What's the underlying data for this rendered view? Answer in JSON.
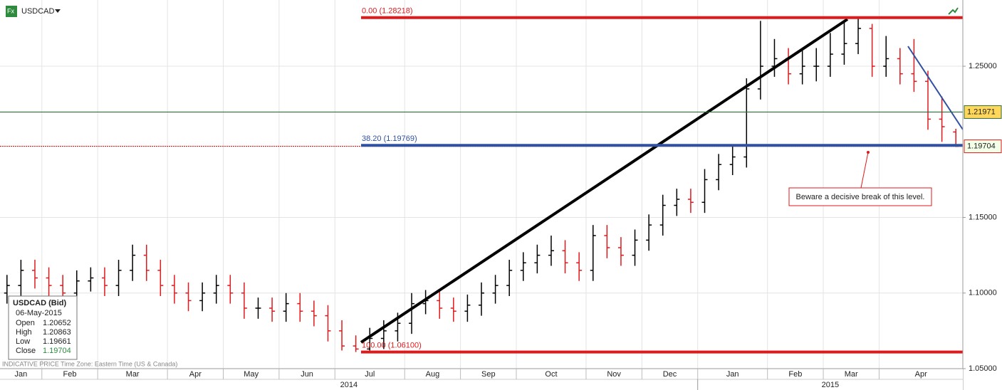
{
  "chart_data": {
    "type": "ohlc",
    "title": "USDCAD",
    "categories": [
      "Jan",
      null,
      null,
      "Feb",
      null,
      null,
      null,
      "Mar",
      null,
      null,
      null,
      null,
      "Apr",
      null,
      null,
      null,
      "May",
      null,
      null,
      null,
      "Jun",
      null,
      null,
      null,
      "Jul",
      null,
      null,
      null,
      null,
      "Aug",
      null,
      null,
      null,
      "Sep",
      null,
      null,
      null,
      "Oct",
      null,
      null,
      null,
      null,
      "Nov",
      null,
      null,
      null,
      "Dec",
      null,
      null,
      null,
      "Jan",
      null,
      null,
      null,
      null,
      "Feb",
      null,
      null,
      null,
      "Mar",
      null,
      null,
      null,
      "Apr",
      null,
      null,
      null,
      null,
      null
    ],
    "years": [
      "2014",
      null,
      null,
      null,
      null,
      null,
      null,
      null,
      null,
      null,
      null,
      null,
      null,
      null,
      null,
      null,
      null,
      null,
      null,
      null,
      null,
      null,
      null,
      null,
      null,
      null,
      null,
      null,
      null,
      null,
      null,
      null,
      null,
      null,
      null,
      null,
      null,
      null,
      null,
      null,
      null,
      null,
      null,
      null,
      null,
      null,
      null,
      null,
      null,
      null,
      "2015",
      null,
      null,
      null,
      null,
      null,
      null,
      null,
      null,
      null,
      null,
      null,
      null,
      null,
      null,
      null,
      null,
      null,
      null
    ],
    "open": [
      1.1,
      1.105,
      1.115,
      1.11,
      1.105,
      1.1,
      1.108,
      1.11,
      1.105,
      1.115,
      1.125,
      1.115,
      1.105,
      1.1,
      1.095,
      1.1,
      1.105,
      1.1,
      1.09,
      1.09,
      1.088,
      1.093,
      1.088,
      1.085,
      1.075,
      1.065,
      1.063,
      1.07,
      1.075,
      1.08,
      1.093,
      1.095,
      1.09,
      1.088,
      1.092,
      1.1,
      1.105,
      1.115,
      1.12,
      1.125,
      1.128,
      1.12,
      1.115,
      1.138,
      1.13,
      1.125,
      1.135,
      1.145,
      1.158,
      1.162,
      1.16,
      1.175,
      1.185,
      1.19,
      1.235,
      1.25,
      1.255,
      1.245,
      1.25,
      1.25,
      1.258,
      1.265,
      1.275,
      1.25,
      1.255,
      1.245,
      1.24,
      1.215,
      1.20652
    ],
    "high": [
      1.112,
      1.122,
      1.122,
      1.117,
      1.112,
      1.115,
      1.117,
      1.117,
      1.122,
      1.132,
      1.132,
      1.122,
      1.112,
      1.107,
      1.107,
      1.112,
      1.112,
      1.107,
      1.097,
      1.097,
      1.1,
      1.1,
      1.095,
      1.092,
      1.082,
      1.072,
      1.077,
      1.082,
      1.087,
      1.1,
      1.102,
      1.102,
      1.097,
      1.099,
      1.107,
      1.112,
      1.122,
      1.127,
      1.132,
      1.138,
      1.135,
      1.127,
      1.145,
      1.145,
      1.137,
      1.142,
      1.152,
      1.165,
      1.169,
      1.169,
      1.182,
      1.192,
      1.197,
      1.242,
      1.28,
      1.268,
      1.262,
      1.262,
      1.262,
      1.272,
      1.28,
      1.2822,
      1.278,
      1.27,
      1.262,
      1.268,
      1.247,
      1.23,
      1.20863
    ],
    "low": [
      1.093,
      1.098,
      1.103,
      1.098,
      1.093,
      1.093,
      1.101,
      1.098,
      1.098,
      1.108,
      1.108,
      1.098,
      1.093,
      1.088,
      1.088,
      1.093,
      1.093,
      1.083,
      1.083,
      1.081,
      1.081,
      1.081,
      1.078,
      1.068,
      1.062,
      1.061,
      1.062,
      1.063,
      1.068,
      1.073,
      1.086,
      1.083,
      1.081,
      1.081,
      1.085,
      1.093,
      1.098,
      1.108,
      1.113,
      1.118,
      1.113,
      1.108,
      1.108,
      1.123,
      1.118,
      1.118,
      1.128,
      1.138,
      1.151,
      1.153,
      1.153,
      1.168,
      1.178,
      1.183,
      1.228,
      1.243,
      1.238,
      1.238,
      1.24,
      1.243,
      1.251,
      1.258,
      1.243,
      1.243,
      1.238,
      1.233,
      1.208,
      1.2,
      1.19661
    ],
    "close": [
      1.105,
      1.115,
      1.11,
      1.105,
      1.1,
      1.108,
      1.11,
      1.105,
      1.115,
      1.125,
      1.115,
      1.105,
      1.1,
      1.095,
      1.1,
      1.105,
      1.1,
      1.09,
      1.09,
      1.088,
      1.093,
      1.088,
      1.085,
      1.075,
      1.065,
      1.063,
      1.07,
      1.075,
      1.08,
      1.093,
      1.095,
      1.09,
      1.088,
      1.092,
      1.1,
      1.105,
      1.115,
      1.12,
      1.125,
      1.128,
      1.12,
      1.115,
      1.138,
      1.13,
      1.125,
      1.135,
      1.145,
      1.158,
      1.162,
      1.16,
      1.175,
      1.185,
      1.19,
      1.235,
      1.25,
      1.255,
      1.245,
      1.25,
      1.25,
      1.258,
      1.265,
      1.275,
      1.25,
      1.255,
      1.245,
      1.24,
      1.215,
      1.21,
      1.19704
    ],
    "up_color": "#000000",
    "down_color": "#e0191b",
    "ylim": [
      1.05,
      1.2938
    ],
    "yticks": [
      {
        "value": 1.05,
        "label": "1.05000"
      },
      {
        "value": 1.1,
        "label": "1.10000"
      },
      {
        "value": 1.15,
        "label": "1.15000"
      },
      {
        "value": 1.25,
        "label": "1.25000"
      }
    ],
    "grid": true,
    "fib_levels": [
      {
        "value": 1.28218,
        "label": "0.00 (1.28218)",
        "color": "#e0191b"
      },
      {
        "value": 1.19769,
        "label": "38.20 (1.19769)",
        "color": "#3050a0"
      },
      {
        "value": 1.061,
        "label": "100.00 (1.06100)",
        "color": "#e0191b"
      }
    ],
    "price_lines": [
      {
        "value": 1.21971,
        "label": "1.21971",
        "color": "#2e6b3c",
        "box": "#ffd75a"
      },
      {
        "value": 1.19704,
        "label": "1.19704",
        "color": "#e0191b",
        "box": "#f4ffe8"
      }
    ],
    "annotation": "Beware a decisive break of this level.",
    "footnote": "INDICATIVE PRICE   Time Zone: Eastern Time (US & Canada)",
    "info": {
      "title": "USDCAD (Bid)",
      "date": "06-May-2015",
      "rows": [
        [
          "Open",
          "1.20652"
        ],
        [
          "High",
          "1.20863"
        ],
        [
          "Low",
          "1.19661"
        ],
        [
          "Close",
          "1.19704"
        ]
      ]
    }
  }
}
